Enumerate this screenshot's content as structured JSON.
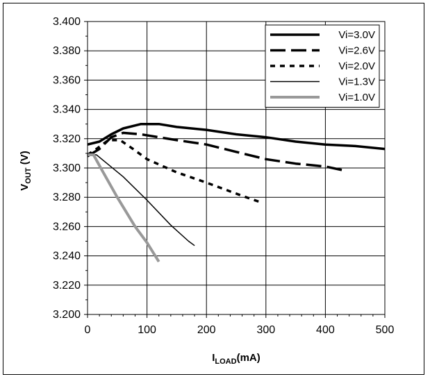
{
  "chart_data": {
    "type": "line",
    "xlabel": {
      "main": "I",
      "sub": "LOAD",
      "suffix": "(mA)"
    },
    "ylabel": {
      "main": "V",
      "sub": "OUT",
      "suffix": " (V)"
    },
    "xlim": [
      0,
      500
    ],
    "ylim": [
      3.2,
      3.4
    ],
    "x_ticks": [
      "0",
      "100",
      "200",
      "300",
      "400",
      "500"
    ],
    "y_ticks": [
      "3.200",
      "3.220",
      "3.240",
      "3.260",
      "3.280",
      "3.300",
      "3.320",
      "3.340",
      "3.360",
      "3.380",
      "3.400"
    ],
    "grid": true,
    "legend_position": "top-right",
    "series": [
      {
        "name": "Vi=3.0V",
        "color": "#000000",
        "style": "solid-thick",
        "points": [
          [
            0,
            3.316
          ],
          [
            20,
            3.318
          ],
          [
            40,
            3.323
          ],
          [
            60,
            3.327
          ],
          [
            90,
            3.33
          ],
          [
            120,
            3.33
          ],
          [
            150,
            3.328
          ],
          [
            200,
            3.326
          ],
          [
            250,
            3.323
          ],
          [
            300,
            3.321
          ],
          [
            350,
            3.318
          ],
          [
            400,
            3.316
          ],
          [
            450,
            3.315
          ],
          [
            500,
            3.313
          ]
        ]
      },
      {
        "name": "Vi=2.6V",
        "color": "#000000",
        "style": "long-dash",
        "points": [
          [
            0,
            3.308
          ],
          [
            20,
            3.313
          ],
          [
            40,
            3.321
          ],
          [
            60,
            3.324
          ],
          [
            90,
            3.323
          ],
          [
            120,
            3.321
          ],
          [
            150,
            3.319
          ],
          [
            200,
            3.316
          ],
          [
            250,
            3.311
          ],
          [
            300,
            3.306
          ],
          [
            350,
            3.303
          ],
          [
            400,
            3.301
          ],
          [
            435,
            3.298
          ]
        ]
      },
      {
        "name": "Vi=2.0V",
        "color": "#000000",
        "style": "short-dash",
        "points": [
          [
            0,
            3.309
          ],
          [
            15,
            3.313
          ],
          [
            35,
            3.319
          ],
          [
            55,
            3.319
          ],
          [
            80,
            3.312
          ],
          [
            100,
            3.306
          ],
          [
            150,
            3.297
          ],
          [
            200,
            3.29
          ],
          [
            260,
            3.281
          ],
          [
            295,
            3.276
          ]
        ]
      },
      {
        "name": "Vi=1.3V",
        "color": "#000000",
        "style": "thin",
        "points": [
          [
            0,
            3.309
          ],
          [
            15,
            3.309
          ],
          [
            30,
            3.304
          ],
          [
            60,
            3.294
          ],
          [
            100,
            3.278
          ],
          [
            140,
            3.261
          ],
          [
            170,
            3.25
          ],
          [
            180,
            3.247
          ]
        ]
      },
      {
        "name": "Vi=1.0V",
        "color": "#999999",
        "style": "gray-thick",
        "points": [
          [
            0,
            3.309
          ],
          [
            10,
            3.309
          ],
          [
            25,
            3.298
          ],
          [
            50,
            3.28
          ],
          [
            80,
            3.26
          ],
          [
            100,
            3.249
          ],
          [
            120,
            3.236
          ]
        ]
      }
    ]
  }
}
